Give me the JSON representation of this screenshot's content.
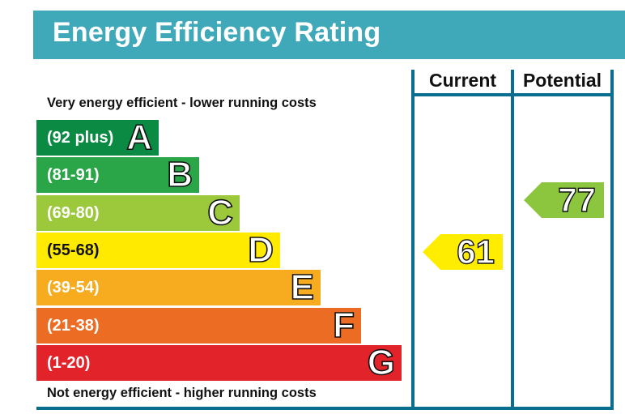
{
  "title": "Energy Efficiency Rating",
  "colors": {
    "title_bg": "#3fa8b9",
    "frame": "#0a6f8f"
  },
  "columns": {
    "current_label": "Current",
    "potential_label": "Potential"
  },
  "notes": {
    "top": "Very energy efficient - lower running costs",
    "bottom": "Not energy efficient - higher running costs"
  },
  "chart_data": {
    "type": "bar",
    "title": "Energy Efficiency Rating",
    "bands": [
      {
        "range": "(92 plus)",
        "letter": "A",
        "color": "#008054"
      },
      {
        "range": "(81-91)",
        "letter": "B",
        "color": "#19b459"
      },
      {
        "range": "(69-80)",
        "letter": "C",
        "color": "#8dce46"
      },
      {
        "range": "(55-68)",
        "letter": "D",
        "color": "#ffd500"
      },
      {
        "range": "(39-54)",
        "letter": "E",
        "color": "#fcaa65"
      },
      {
        "range": "(21-38)",
        "letter": "F",
        "color": "#ef8023"
      },
      {
        "range": "(1-20)",
        "letter": "G",
        "color": "#e9153b"
      }
    ],
    "current": {
      "value": 61,
      "band": "D",
      "color": "#ffed00"
    },
    "potential": {
      "value": 77,
      "band": "C",
      "color": "#8cc63f"
    }
  }
}
